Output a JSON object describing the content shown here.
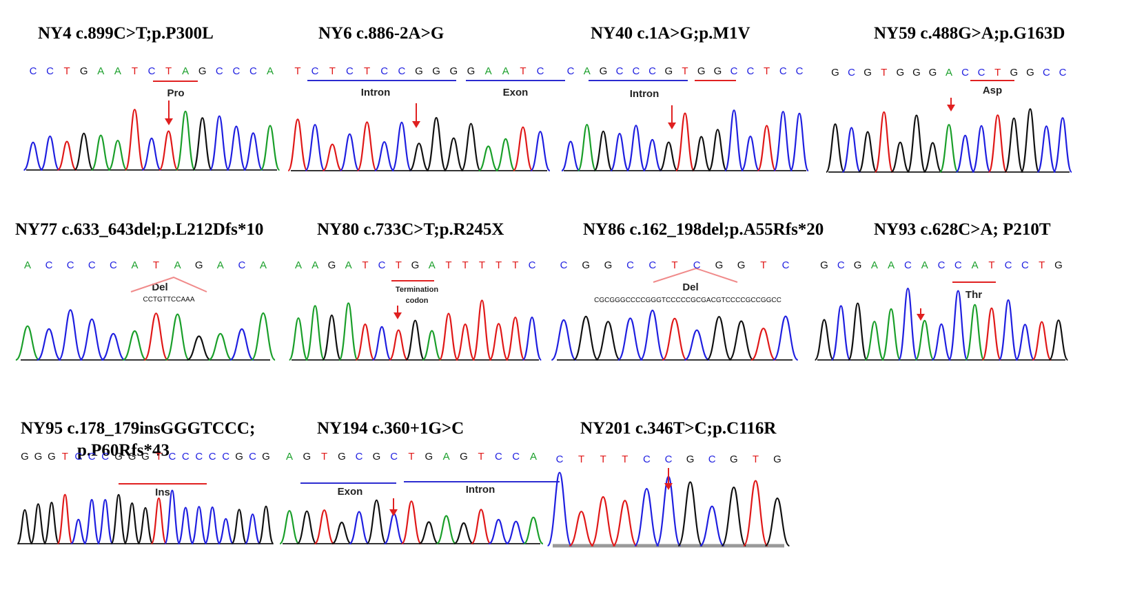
{
  "colors": {
    "A": "#1a9f2a",
    "C": "#1f1fe0",
    "G": "#111111",
    "T": "#e01818",
    "accent": "#e02020",
    "bracket_blue": "#2b2bd0"
  },
  "panels": [
    {
      "id": "ny4",
      "title": "NY4  c.899C>T;p.P300L",
      "sequence": "CCTGAATCTAGCCCA",
      "labels": [
        "Pro"
      ],
      "arrow": true,
      "peaks": "CCTGAATCTAGCCCA"
    },
    {
      "id": "ny6",
      "title": "NY6  c.886-2A>G",
      "sequence": "TCTCTCCGGGGAATC",
      "labels": [
        "Intron",
        "Exon"
      ],
      "arrow": true,
      "peaks": "TCTCTCCGGGGAATC"
    },
    {
      "id": "ny40",
      "title": "NY40  c.1A>G;p.M1V",
      "sequence": "CAGCCCGTGGCCTCC",
      "labels": [
        "Intron"
      ],
      "arrow": true,
      "peaks": "CAGCCCGTGGCCTCC"
    },
    {
      "id": "ny59",
      "title": "NY59  c.488G>A;p.G163D",
      "sequence": "GCGTGGGACCTGGCC",
      "labels": [
        "Asp"
      ],
      "arrow": true,
      "peaks": "GCGTGGGACCTGGCC"
    },
    {
      "id": "ny77",
      "title": "NY77 c.633_643del;p.L212Dfs*10",
      "sequence": "ACCCCATAGACA",
      "labels": [
        "Del"
      ],
      "del_seq": "CCTGTTCCAAA",
      "arrow": false,
      "peaks": "ACCCCATAGACA"
    },
    {
      "id": "ny80",
      "title": "NY80 c.733C>T;p.R245X",
      "sequence": "AAGATCTGATTTTTC",
      "labels": [
        "Termination",
        "codon"
      ],
      "arrow": true,
      "peaks": "AAGATCTGATTTTTC"
    },
    {
      "id": "ny86",
      "title": "NY86 c.162_198del;p.A55Rfs*20",
      "sequence": "CGGCCTCGGTC",
      "labels": [
        "Del"
      ],
      "del_seq": "CGCGGGCCCCGGGTCCCCCGCGACGTCCCCGCCGGCC",
      "arrow": false,
      "peaks": "CGGCCTCGGTC"
    },
    {
      "id": "ny93",
      "title": "NY93 c.628C>A; P210T",
      "sequence": "GCGAACACCATCCTG",
      "labels": [
        "Thr"
      ],
      "arrow": true,
      "peaks": "GCGAACACCATCCTG"
    },
    {
      "id": "ny95",
      "title": "NY95 c.178_179insGGGTCCC;",
      "title2": "p.P60Rfs*43",
      "sequence": "GGGTCCCGGGTCCCCCGCG",
      "labels": [
        "Ins"
      ],
      "arrow": false,
      "peaks": "GGGTCCCGGGTCCCCCGCG"
    },
    {
      "id": "ny194",
      "title": "NY194 c.360+1G>C",
      "sequence": "AGTGCGCTGAGTCCA",
      "labels": [
        "Exon",
        "Intron"
      ],
      "arrow": true,
      "peaks": "AGTGCGCTGAGTCCA"
    },
    {
      "id": "ny201",
      "title": "NY201 c.346T>C;p.C116R",
      "sequence": "CTTTCCGCGTG",
      "labels": [],
      "arrow": true,
      "peaks": "CTTTCCGCGTG"
    }
  ]
}
